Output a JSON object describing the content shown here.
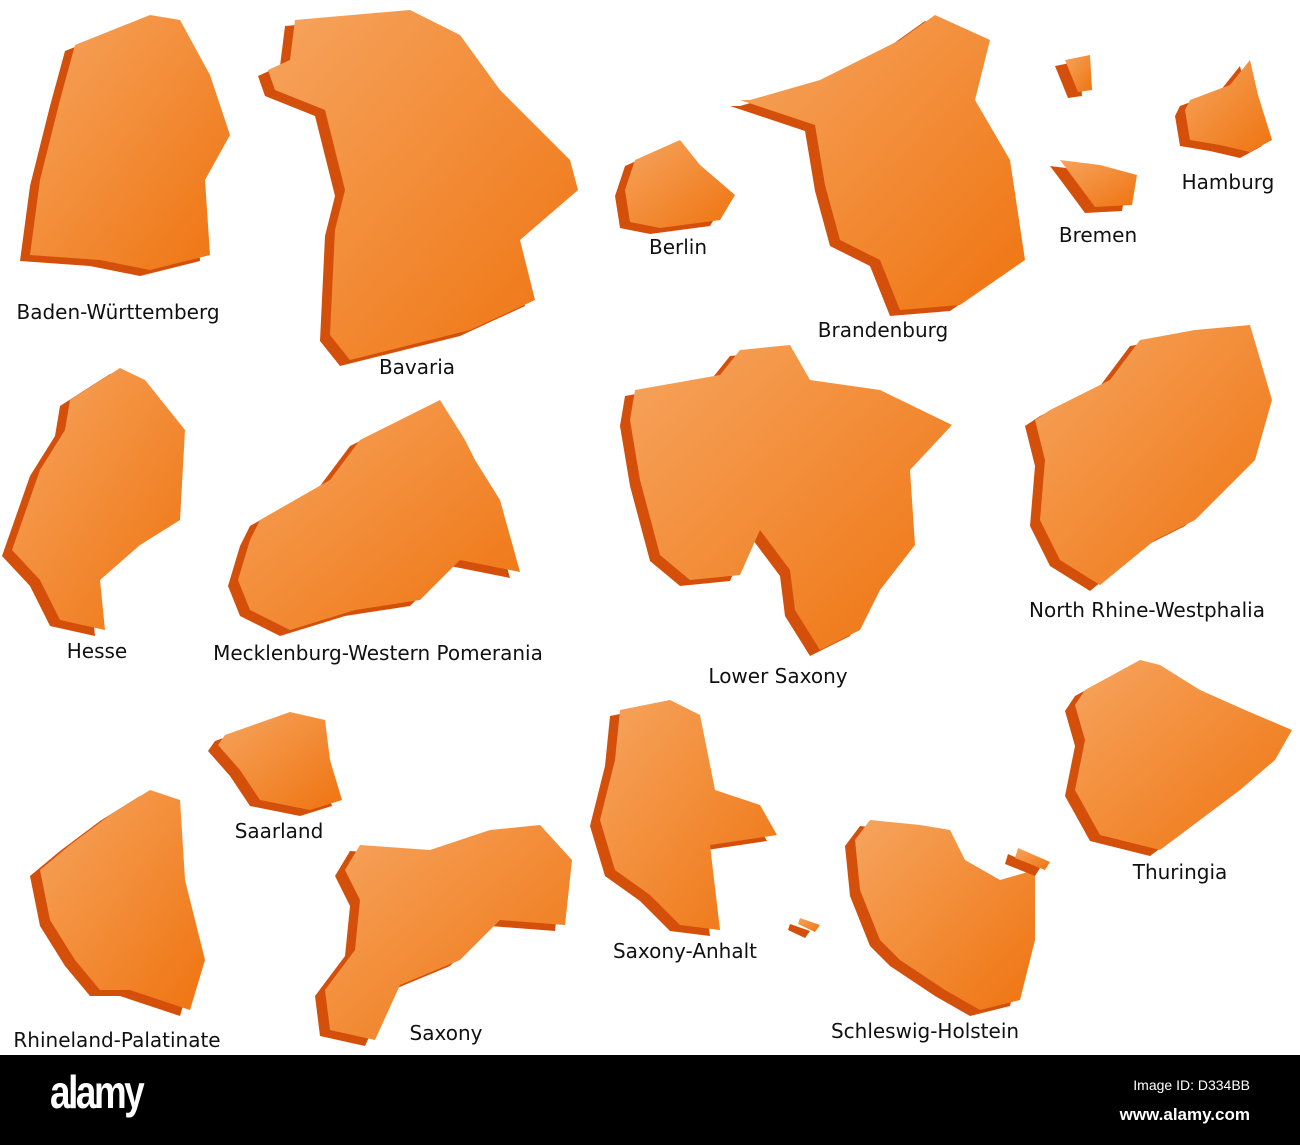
{
  "colors": {
    "fill_light": "#f6a45e",
    "fill_dark": "#ef7410",
    "extrusion": "#d4500a",
    "background": "#ffffff",
    "footer": "#000000"
  },
  "states": [
    {
      "id": "baden-wurttemberg",
      "label": "Baden-Württemberg"
    },
    {
      "id": "bavaria",
      "label": "Bavaria"
    },
    {
      "id": "berlin",
      "label": "Berlin"
    },
    {
      "id": "brandenburg",
      "label": "Brandenburg"
    },
    {
      "id": "bremen",
      "label": "Bremen"
    },
    {
      "id": "hamburg",
      "label": "Hamburg"
    },
    {
      "id": "hesse",
      "label": "Hesse"
    },
    {
      "id": "mecklenburg-western-pomerania",
      "label": "Mecklenburg-Western Pomerania"
    },
    {
      "id": "lower-saxony",
      "label": "Lower Saxony"
    },
    {
      "id": "north-rhine-westphalia",
      "label": "North Rhine-Westphalia"
    },
    {
      "id": "saarland",
      "label": "Saarland"
    },
    {
      "id": "rhineland-palatinate",
      "label": "Rhineland-Palatinate"
    },
    {
      "id": "saxony",
      "label": "Saxony"
    },
    {
      "id": "saxony-anhalt",
      "label": "Saxony-Anhalt"
    },
    {
      "id": "schleswig-holstein",
      "label": "Schleswig-Holstein"
    },
    {
      "id": "thuringia",
      "label": "Thuringia"
    }
  ],
  "footer": {
    "logo": "alamy",
    "image_id": "Image ID: D334BB",
    "website": "www.alamy.com"
  }
}
